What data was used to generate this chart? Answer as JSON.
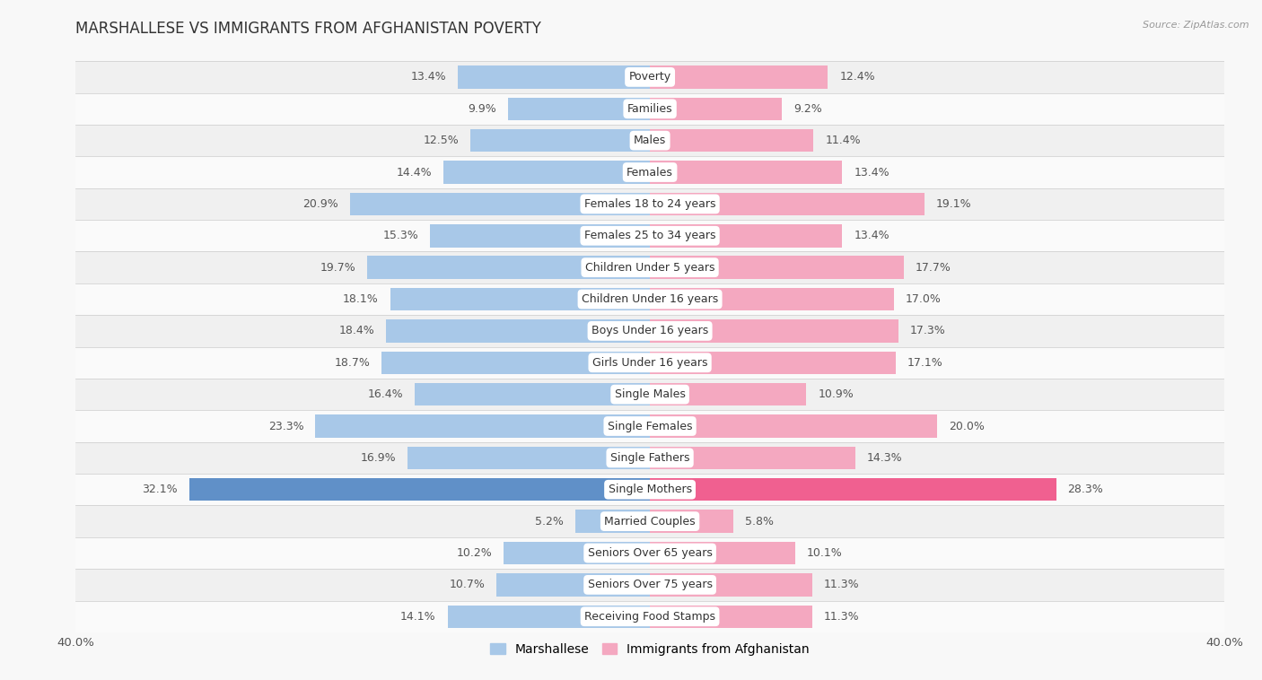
{
  "title": "MARSHALLESE VS IMMIGRANTS FROM AFGHANISTAN POVERTY",
  "source": "Source: ZipAtlas.com",
  "categories": [
    "Poverty",
    "Families",
    "Males",
    "Females",
    "Females 18 to 24 years",
    "Females 25 to 34 years",
    "Children Under 5 years",
    "Children Under 16 years",
    "Boys Under 16 years",
    "Girls Under 16 years",
    "Single Males",
    "Single Females",
    "Single Fathers",
    "Single Mothers",
    "Married Couples",
    "Seniors Over 65 years",
    "Seniors Over 75 years",
    "Receiving Food Stamps"
  ],
  "marshallese": [
    13.4,
    9.9,
    12.5,
    14.4,
    20.9,
    15.3,
    19.7,
    18.1,
    18.4,
    18.7,
    16.4,
    23.3,
    16.9,
    32.1,
    5.2,
    10.2,
    10.7,
    14.1
  ],
  "afghanistan": [
    12.4,
    9.2,
    11.4,
    13.4,
    19.1,
    13.4,
    17.7,
    17.0,
    17.3,
    17.1,
    10.9,
    20.0,
    14.3,
    28.3,
    5.8,
    10.1,
    11.3,
    11.3
  ],
  "bar_color_marshallese": "#a8c8e8",
  "bar_color_afghanistan": "#f4a8c0",
  "highlight_color_marshallese": "#6090c8",
  "highlight_color_afghanistan": "#f06090",
  "row_color_even": "#f0f0f0",
  "row_color_odd": "#fafafa",
  "background_color": "#f8f8f8",
  "axis_limit": 40.0,
  "bar_height": 0.72,
  "label_fontsize": 9.0,
  "category_fontsize": 9.0,
  "title_fontsize": 12,
  "legend_fontsize": 10
}
